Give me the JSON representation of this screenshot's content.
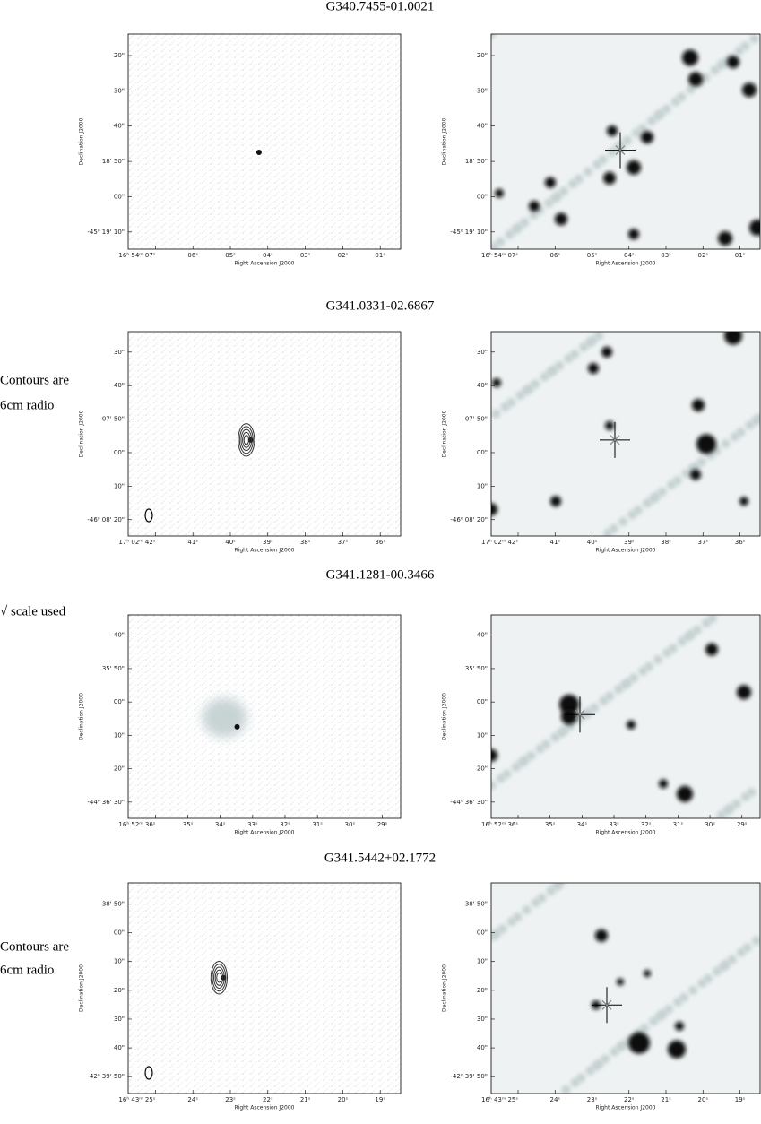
{
  "figures": [
    {
      "title": "G340.7455-01.0021",
      "x_label": "Right Ascension J2000",
      "y_label": "Declination J2000",
      "x_ticks": [
        "16ʰ 54ᵐ 07ˢ",
        "06ˢ",
        "05ˢ",
        "04ˢ",
        "03ˢ",
        "02ˢ",
        "01ˢ"
      ],
      "y_ticks": [
        "20\"",
        "30\"",
        "40\"",
        "18' 50\"",
        "00\"",
        "-45⁰ 19' 10\""
      ]
    },
    {
      "title": "G341.0331-02.6867",
      "note": [
        "Contours are",
        "6cm radio"
      ],
      "x_label": "Right Ascension J2000",
      "y_label": "Declination J2000",
      "x_ticks": [
        "17ʰ 02ᵐ 42ˢ",
        "41ˢ",
        "40ˢ",
        "39ˢ",
        "38ˢ",
        "37ˢ",
        "36ˢ"
      ],
      "y_ticks": [
        "30\"",
        "40\"",
        "07' 50\"",
        "00\"",
        "10\"",
        "-46⁰ 08' 20\""
      ]
    },
    {
      "title": "G341.1281-00.3466",
      "note": [
        "√ scale used"
      ],
      "x_label": "Right Ascension J2000",
      "y_label": "Declination J2000",
      "x_ticks": [
        "16ʰ 52ᵐ 36ˢ",
        "35ˢ",
        "34ˢ",
        "33ˢ",
        "32ˢ",
        "31ˢ",
        "30ˢ",
        "29ˢ"
      ],
      "y_ticks": [
        "40\"",
        "35' 50\"",
        "00\"",
        "10\"",
        "20\"",
        "-44⁰ 36' 30\""
      ]
    },
    {
      "title": "G341.5442+02.1772",
      "note": [
        "Contours are",
        "6cm radio"
      ],
      "x_label": "Right Ascension J2000",
      "y_label": "Declination J2000",
      "x_ticks": [
        "16ʰ 43ᵐ 25ˢ",
        "24ˢ",
        "23ˢ",
        "22ˢ",
        "21ˢ",
        "20ˢ",
        "19ˢ"
      ],
      "y_ticks": [
        "38' 50\"",
        "00\"",
        "10\"",
        "20\"",
        "30\"",
        "40\"",
        "-42⁰ 39' 50\""
      ]
    }
  ]
}
